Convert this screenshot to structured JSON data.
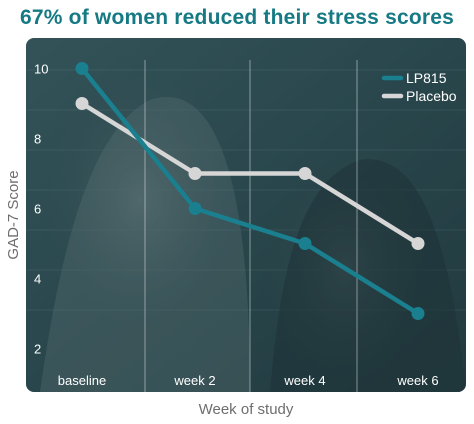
{
  "title": "67% of women reduced their stress scores",
  "chart_data": {
    "type": "line",
    "title": "67% of women reduced their stress scores",
    "xlabel": "Week of study",
    "ylabel": "GAD-7 Score",
    "categories": [
      "baseline",
      "week 2",
      "week 4",
      "week 6"
    ],
    "series": [
      {
        "name": "LP815",
        "color": "#1a7f8e",
        "values": [
          10,
          6,
          5,
          3
        ]
      },
      {
        "name": "Placebo",
        "color": "#d6d6d6",
        "values": [
          9,
          7,
          7,
          5
        ]
      }
    ],
    "y_ticks": [
      2,
      4,
      6,
      8,
      10
    ],
    "ylim": [
      1.5,
      10.5
    ],
    "grid": "vertical",
    "legend_position": "top-right"
  }
}
